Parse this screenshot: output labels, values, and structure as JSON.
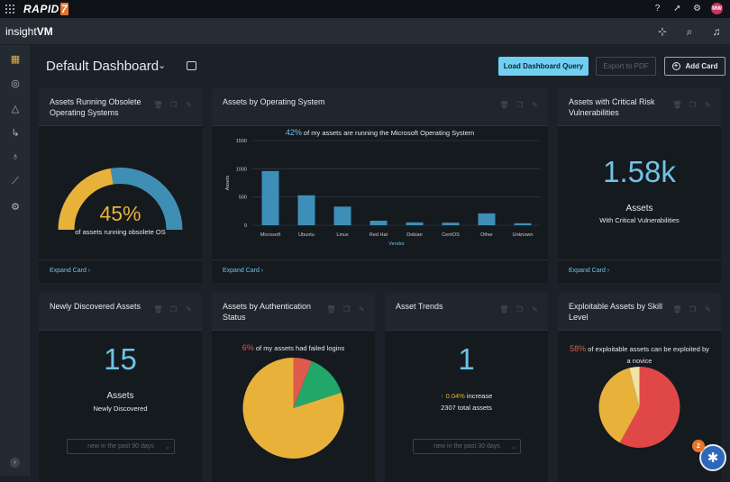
{
  "topbar": {
    "brand": "RAPID",
    "brand_mark": "7",
    "avatar_initials": "MW"
  },
  "app": {
    "product_prefix": "insight",
    "product_suffix": "VM"
  },
  "header": {
    "title": "Default Dashboard",
    "load_query_label": "Load Dashboard Query",
    "export_label": "Export to PDF",
    "add_card_label": "Add Card"
  },
  "cards": {
    "obsolete": {
      "title": "Assets Running Obsolete Operating Systems",
      "value": "45%",
      "caption": "of assets running obsolete OS",
      "expand": "Expand Card ›",
      "gauge_fraction": 0.45
    },
    "os": {
      "title": "Assets by Operating System",
      "pct": "42%",
      "subtitle": " of my assets are running the Microsoft Operating System",
      "expand": "Expand Card ›"
    },
    "critical": {
      "title": "Assets with Critical Risk Vulnerabilities",
      "value": "1.58k",
      "label": "Assets",
      "sublabel": "With Critical Vulnerabilities",
      "expand": "Expand Card ›"
    },
    "newly": {
      "title": "Newly Discovered Assets",
      "value": "15",
      "label": "Assets",
      "sublabel": "Newly Discovered",
      "select": "new in the past 90 days"
    },
    "auth": {
      "title": "Assets by Authentication Status",
      "pct": "6%",
      "subtitle": " of my assets had failed logins"
    },
    "trends": {
      "title": "Asset Trends",
      "value": "1",
      "change": "0.04%",
      "change_suffix": " increase",
      "total": "2307 total assets",
      "select": "new in the past 30 days"
    },
    "exploit": {
      "title": "Exploitable Assets by Skill Level",
      "pct": "58%",
      "subtitle": " of exploitable assets can be exploited by a novice"
    }
  },
  "help": {
    "badge": "2"
  },
  "colors": {
    "accent": "#6fc3e6",
    "gauge_fill": "#e8b23a",
    "gauge_rest": "#3f8fb5",
    "bar": "#3d8fb8",
    "red": "#e05a4b"
  },
  "chart_data": [
    {
      "type": "bar",
      "categories": [
        "Microsoft",
        "Ubuntu",
        "Linux",
        "Red Hat",
        "Debian",
        "CentOS",
        "Other",
        "Unknown"
      ],
      "values": [
        960,
        530,
        330,
        80,
        50,
        45,
        210,
        35
      ],
      "xlabel": "Vendor",
      "ylabel": "Assets",
      "ylim": [
        0,
        1500
      ],
      "yticks": [
        0,
        500,
        1000,
        1500
      ],
      "grid": true
    },
    {
      "type": "pie",
      "slices": [
        {
          "value": 6,
          "color": "#e05a4b"
        },
        {
          "value": 14,
          "color": "#22a76b"
        },
        {
          "value": 80,
          "color": "#e8b23a"
        }
      ]
    },
    {
      "type": "pie",
      "slices": [
        {
          "value": 58,
          "color": "#e04848"
        },
        {
          "value": 38,
          "color": "#e8b23a"
        },
        {
          "value": 4,
          "color": "#f2e2a6"
        }
      ]
    }
  ]
}
